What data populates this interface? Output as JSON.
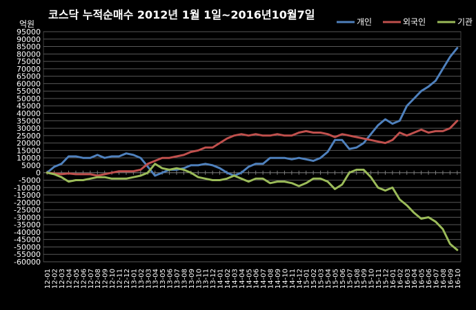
{
  "chart_data": {
    "type": "line",
    "title": "코스닥 누적순매수 2012년 1월 1일~2016년10월7일",
    "unit_label": "억원",
    "ylim": [
      -60000,
      95000
    ],
    "ytick_step": 5000,
    "x": [
      "12-01",
      "12-02",
      "12-03",
      "12-04",
      "12-05",
      "12-06",
      "12-07",
      "12-08",
      "12-09",
      "12-10",
      "12-11",
      "12-12",
      "13-01",
      "13-02",
      "13-03",
      "13-04",
      "13-05",
      "13-06",
      "13-07",
      "13-08",
      "13-09",
      "13-10",
      "13-11",
      "13-12",
      "14-01",
      "14-02",
      "14-03",
      "14-04",
      "14-05",
      "14-06",
      "14-07",
      "14-08",
      "14-09",
      "14-10",
      "14-11",
      "14-12",
      "15-01",
      "15-02",
      "15-03",
      "15-04",
      "15-05",
      "15-06",
      "15-07",
      "15-08",
      "15-09",
      "15-10",
      "15-11",
      "15-12",
      "16-01",
      "16-02",
      "16-03",
      "16-04",
      "16-05",
      "16-06",
      "16-07",
      "16-08",
      "16-09",
      "16-10"
    ],
    "legend_position": "top-right",
    "grid": true,
    "series": [
      {
        "name": "개인",
        "color": "#4f81bd",
        "values": [
          0,
          4000,
          6000,
          11000,
          11000,
          10000,
          10000,
          12000,
          10000,
          11000,
          11000,
          13000,
          12000,
          10000,
          4000,
          -2000,
          0,
          2000,
          2000,
          3000,
          5000,
          5000,
          6000,
          5000,
          3000,
          0,
          -2000,
          0,
          4000,
          6000,
          6000,
          10000,
          10000,
          10000,
          9000,
          10000,
          9000,
          8000,
          10000,
          14000,
          22000,
          22000,
          16000,
          17000,
          20000,
          26000,
          32000,
          36000,
          33000,
          35000,
          45000,
          50000,
          55000,
          58000,
          62000,
          70000,
          78000,
          84000
        ]
      },
      {
        "name": "외국인",
        "color": "#c0504d",
        "values": [
          0,
          -500,
          -1000,
          -500,
          -1000,
          -1000,
          -1000,
          -2000,
          -1000,
          0,
          1000,
          1000,
          1000,
          2000,
          6000,
          8000,
          10000,
          10000,
          11000,
          12000,
          14000,
          15000,
          17000,
          17000,
          20000,
          23000,
          25000,
          26000,
          25000,
          26000,
          25000,
          25000,
          26000,
          25000,
          25000,
          27000,
          28000,
          27000,
          27000,
          26000,
          24000,
          26000,
          25000,
          24000,
          23000,
          22000,
          21000,
          20000,
          22000,
          27000,
          25000,
          27000,
          29000,
          27000,
          28000,
          28000,
          30000,
          35000
        ]
      },
      {
        "name": "기관",
        "color": "#9bbb59",
        "values": [
          0,
          -1000,
          -3000,
          -6000,
          -5000,
          -5000,
          -4000,
          -3000,
          -3000,
          -4000,
          -4000,
          -4000,
          -3000,
          -2000,
          0,
          6000,
          3000,
          2000,
          3000,
          2000,
          0,
          -3000,
          -4000,
          -5000,
          -5000,
          -4000,
          -2000,
          -4000,
          -6000,
          -4000,
          -4000,
          -7000,
          -6000,
          -6000,
          -7000,
          -9000,
          -7000,
          -4000,
          -4000,
          -6000,
          -11000,
          -8000,
          0,
          2000,
          2000,
          -3000,
          -10000,
          -12000,
          -10000,
          -18000,
          -22000,
          -27000,
          -31000,
          -30000,
          -33000,
          -38000,
          -48000,
          -52000
        ]
      }
    ]
  }
}
